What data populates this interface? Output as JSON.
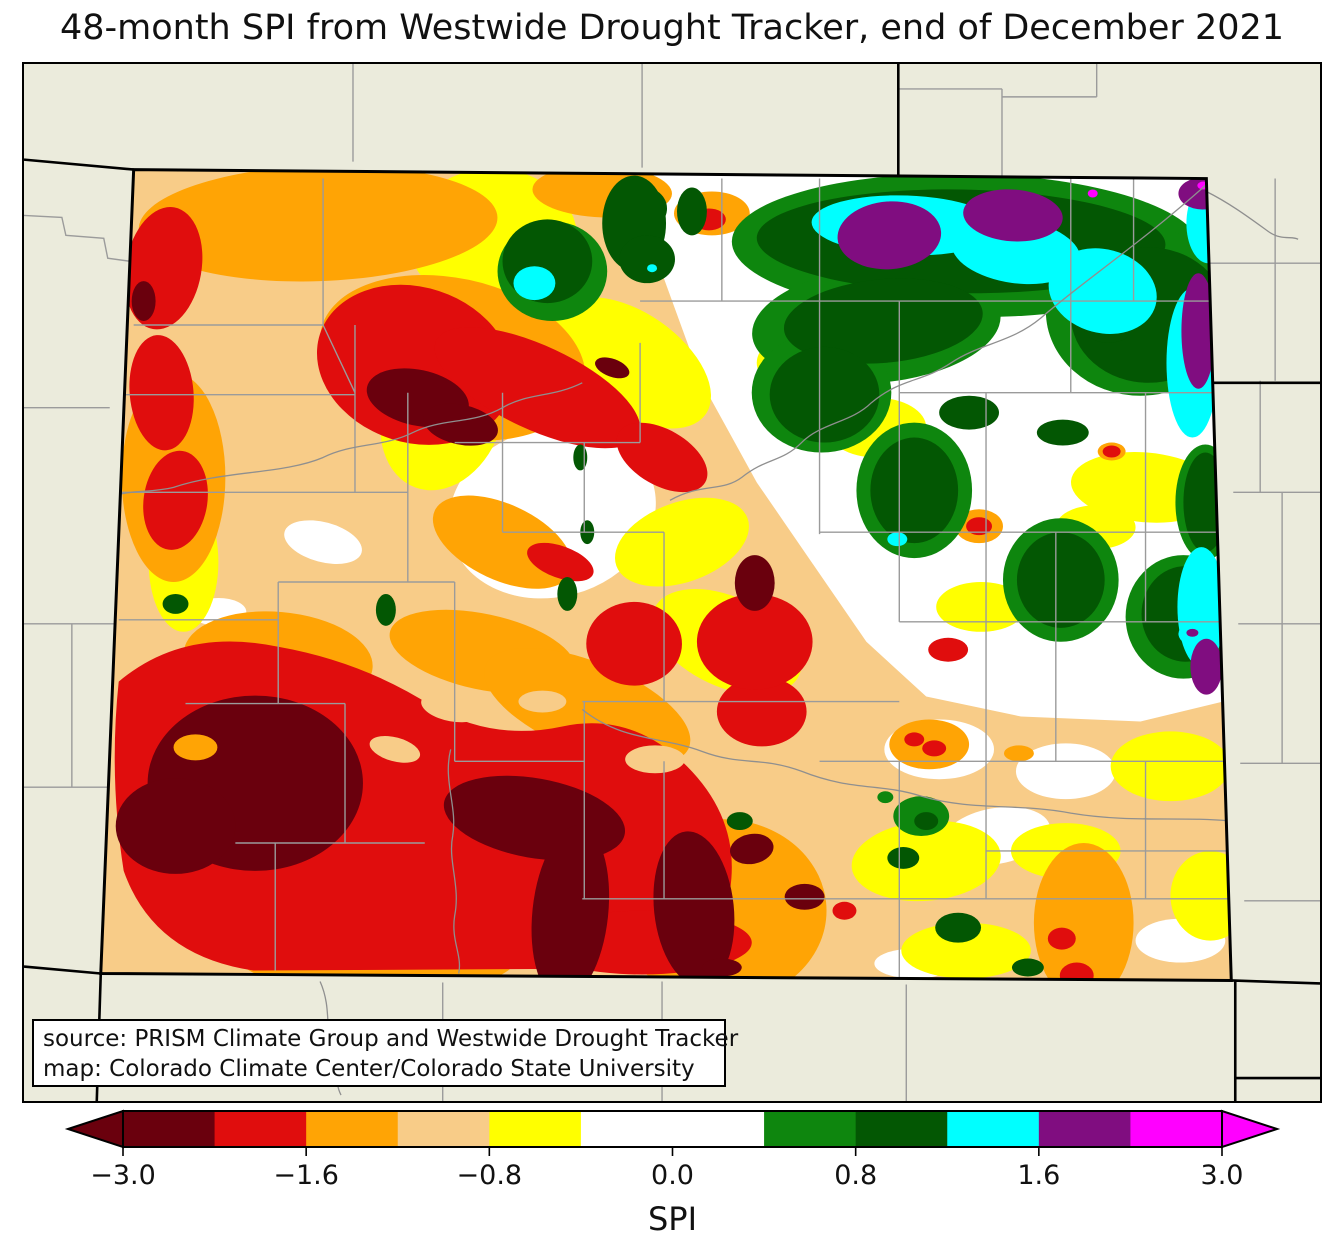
{
  "title": "48-month SPI from Westwide Drought Tracker, end of December 2021",
  "map": {
    "region": "Colorado",
    "annotation_line1": "source: PRISM Climate Group and Westwide Drought Tracker",
    "annotation_line2": "map: Colorado Climate Center/Colorado State University"
  },
  "colorbar": {
    "label": "SPI",
    "tick_labels": [
      "−3.0",
      "−1.6",
      "−0.8",
      "0.0",
      "0.8",
      "1.6",
      "3.0"
    ],
    "boundaries": [
      -3.0,
      -2.0,
      -1.6,
      -1.3,
      -0.8,
      -0.5,
      0.0,
      0.5,
      0.8,
      1.3,
      1.6,
      2.0,
      3.0
    ],
    "segment_colors": [
      "#6A000D",
      "#E00D0D",
      "#FFA405",
      "#F8CC88",
      "#FFFF00",
      "#FFFFFF",
      "#FFFFFF",
      "#0E860E",
      "#035703",
      "#00FFFF",
      "#800D80",
      "#FF00FF"
    ],
    "under_arrow_color": "#6A000D",
    "over_arrow_color": "#FF00FF"
  },
  "palette": {
    "beige": "#EBEBDC",
    "tan": "#F8CC88",
    "orange": "#FFA405",
    "red": "#E00D0D",
    "maroon": "#6A000D",
    "yellow": "#FFFF00",
    "white": "#FFFFFF",
    "green": "#0E860E",
    "darkgreen": "#035703",
    "cyan": "#00FFFF",
    "purple": "#800D80",
    "magenta": "#FF00FF",
    "county_line": "#9B9B9B",
    "river": "#8F8F8F",
    "border": "#000000"
  },
  "chart_data": {
    "type": "filled-contour-map",
    "title": "48-month SPI from Westwide Drought Tracker, end of December 2021",
    "region": "Colorado",
    "variable": "48-month Standardized Precipitation Index (SPI)",
    "colorbar_label": "SPI",
    "color_scale": [
      {
        "range": "below −3.0",
        "color": "#6A000D"
      },
      {
        "range": "−3.0 to −2.0",
        "color": "#6A000D"
      },
      {
        "range": "−2.0 to −1.6",
        "color": "#E00D0D"
      },
      {
        "range": "−1.6 to −1.3",
        "color": "#FFA405"
      },
      {
        "range": "−1.3 to −0.8",
        "color": "#F8CC88"
      },
      {
        "range": "−0.8 to −0.5",
        "color": "#FFFF00"
      },
      {
        "range": "−0.5 to 0.5",
        "color": "#FFFFFF"
      },
      {
        "range": "0.5 to 0.8",
        "color": "#0E860E"
      },
      {
        "range": "0.8 to 1.3",
        "color": "#035703"
      },
      {
        "range": "1.3 to 1.6",
        "color": "#00FFFF"
      },
      {
        "range": "1.6 to 2.0",
        "color": "#800D80"
      },
      {
        "range": "2.0 to 3.0",
        "color": "#FF00FF"
      },
      {
        "range": "above 3.0",
        "color": "#FF00FF"
      }
    ],
    "summary": {
      "driest_areas": "west and southwest Colorado, SPI −1.6 to below −3 (red to dark maroon)",
      "wettest_areas": "northeast corner of Colorado, SPI +0.8 to +3 (dark green, cyan, purple, magenta)",
      "near_normal_areas": "east-central plains, SPI −0.5 to +0.5 (white)"
    }
  }
}
